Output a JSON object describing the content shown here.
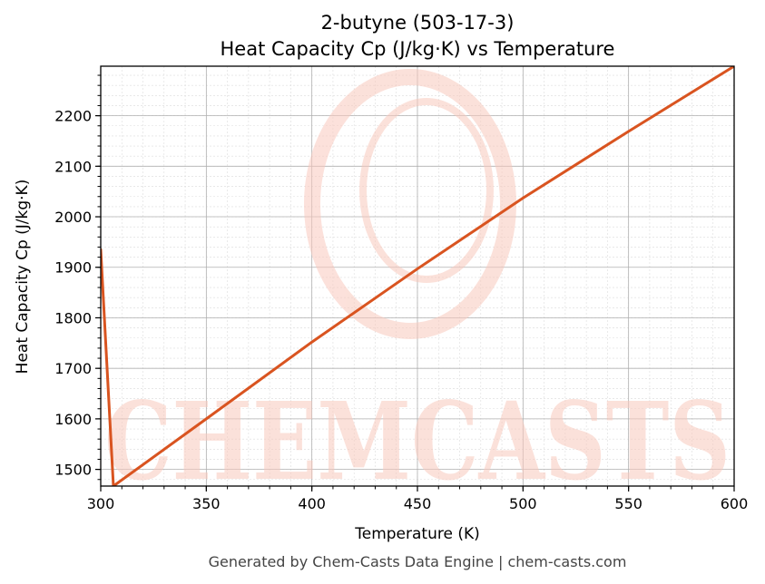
{
  "chart_data": {
    "type": "line",
    "title": "2-butyne (503-17-3)",
    "subtitle": "Heat Capacity Cp (J/kg·K) vs Temperature",
    "xlabel": "Temperature (K)",
    "ylabel": "Heat Capacity Cp (J/kg·K)",
    "xlim": [
      300,
      600
    ],
    "ylim": [
      1467,
      2298
    ],
    "x_ticks": [
      300,
      350,
      400,
      450,
      500,
      550,
      600
    ],
    "y_ticks": [
      1500,
      1600,
      1700,
      1800,
      1900,
      2000,
      2100,
      2200
    ],
    "grid": true,
    "series": [
      {
        "color": "#d95420",
        "x": [
          300,
          306,
          350,
          400,
          450,
          500,
          550,
          600
        ],
        "y": [
          1935,
          1467,
          1600,
          1752,
          1897,
          2037,
          2169,
          2298
        ]
      }
    ]
  },
  "watermark": {
    "text": "CHEMCASTS",
    "color": "#f9c9bd"
  },
  "footer": "Generated by Chem-Casts Data Engine | chem-casts.com"
}
